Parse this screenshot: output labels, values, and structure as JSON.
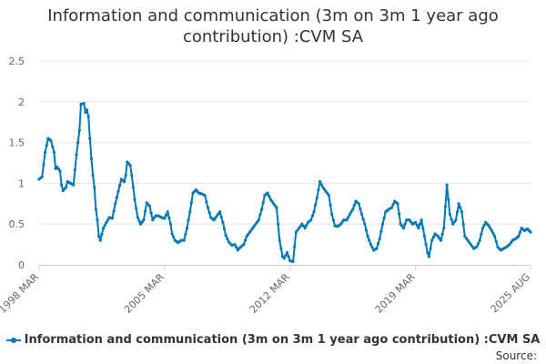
{
  "chart_data": {
    "type": "line",
    "title": "Information and communication (3m on 3m 1 year ago contribution) :CVM SA",
    "xlabel": "",
    "ylabel": "",
    "ylim": [
      0,
      2.5
    ],
    "y_ticks": [
      "0",
      "0.5",
      "1",
      "1.5",
      "2",
      "2.5"
    ],
    "x_ticks": [
      {
        "label": "1998 MAR",
        "index": 0
      },
      {
        "label": "2005 MAR",
        "index": 84
      },
      {
        "label": "2012 MAR",
        "index": 168
      },
      {
        "label": "2019 MAR",
        "index": 252
      },
      {
        "label": "2025 AUG",
        "index": 329
      }
    ],
    "grid": true,
    "legend": "bottom-center",
    "color": "#0077b6",
    "series": [
      {
        "name": "Information and communication (3m on 3m 1 year ago contribution) :CVM SA",
        "start": "1998 MAR",
        "end": "2025 AUG",
        "frequency": "monthly",
        "anchors": [
          [
            0,
            1.05
          ],
          [
            2,
            1.08
          ],
          [
            4,
            1.38
          ],
          [
            6,
            1.55
          ],
          [
            8,
            1.52
          ],
          [
            10,
            1.38
          ],
          [
            11,
            1.18
          ],
          [
            12,
            1.2
          ],
          [
            14,
            1.15
          ],
          [
            15,
            0.98
          ],
          [
            16,
            0.91
          ],
          [
            18,
            0.95
          ],
          [
            19,
            1.02
          ],
          [
            21,
            1.0
          ],
          [
            23,
            0.98
          ],
          [
            25,
            1.35
          ],
          [
            27,
            1.65
          ],
          [
            28,
            1.97
          ],
          [
            30,
            1.98
          ],
          [
            31,
            1.87
          ],
          [
            32,
            1.9
          ],
          [
            33,
            1.82
          ],
          [
            34,
            1.55
          ],
          [
            35,
            1.3
          ],
          [
            36,
            1.1
          ],
          [
            37,
            0.95
          ],
          [
            38,
            0.68
          ],
          [
            39,
            0.55
          ],
          [
            40,
            0.35
          ],
          [
            41,
            0.3
          ],
          [
            43,
            0.45
          ],
          [
            45,
            0.52
          ],
          [
            47,
            0.58
          ],
          [
            49,
            0.57
          ],
          [
            51,
            0.75
          ],
          [
            53,
            0.9
          ],
          [
            55,
            1.05
          ],
          [
            57,
            1.02
          ],
          [
            58,
            1.1
          ],
          [
            59,
            1.26
          ],
          [
            61,
            1.22
          ],
          [
            62,
            1.1
          ],
          [
            63,
            0.95
          ],
          [
            64,
            0.8
          ],
          [
            66,
            0.58
          ],
          [
            68,
            0.5
          ],
          [
            70,
            0.55
          ],
          [
            72,
            0.76
          ],
          [
            74,
            0.72
          ],
          [
            76,
            0.55
          ],
          [
            78,
            0.6
          ],
          [
            80,
            0.6
          ],
          [
            82,
            0.58
          ],
          [
            84,
            0.57
          ],
          [
            86,
            0.65
          ],
          [
            88,
            0.5
          ],
          [
            89,
            0.38
          ],
          [
            91,
            0.3
          ],
          [
            93,
            0.27
          ],
          [
            95,
            0.3
          ],
          [
            97,
            0.3
          ],
          [
            99,
            0.45
          ],
          [
            101,
            0.65
          ],
          [
            103,
            0.88
          ],
          [
            105,
            0.92
          ],
          [
            107,
            0.88
          ],
          [
            109,
            0.87
          ],
          [
            111,
            0.85
          ],
          [
            113,
            0.7
          ],
          [
            115,
            0.58
          ],
          [
            117,
            0.55
          ],
          [
            119,
            0.6
          ],
          [
            121,
            0.65
          ],
          [
            123,
            0.52
          ],
          [
            125,
            0.36
          ],
          [
            127,
            0.28
          ],
          [
            129,
            0.24
          ],
          [
            131,
            0.25
          ],
          [
            133,
            0.18
          ],
          [
            135,
            0.22
          ],
          [
            137,
            0.25
          ],
          [
            139,
            0.35
          ],
          [
            141,
            0.4
          ],
          [
            143,
            0.45
          ],
          [
            145,
            0.5
          ],
          [
            147,
            0.55
          ],
          [
            149,
            0.68
          ],
          [
            151,
            0.85
          ],
          [
            153,
            0.88
          ],
          [
            155,
            0.8
          ],
          [
            157,
            0.75
          ],
          [
            159,
            0.7
          ],
          [
            161,
            0.3
          ],
          [
            163,
            0.1
          ],
          [
            164,
            0.08
          ],
          [
            166,
            0.15
          ],
          [
            168,
            0.05
          ],
          [
            170,
            0.04
          ],
          [
            172,
            0.4
          ],
          [
            174,
            0.45
          ],
          [
            176,
            0.5
          ],
          [
            178,
            0.45
          ],
          [
            180,
            0.52
          ],
          [
            182,
            0.55
          ],
          [
            184,
            0.65
          ],
          [
            186,
            0.82
          ],
          [
            188,
            1.02
          ],
          [
            190,
            0.95
          ],
          [
            192,
            0.9
          ],
          [
            194,
            0.85
          ],
          [
            196,
            0.62
          ],
          [
            198,
            0.48
          ],
          [
            200,
            0.47
          ],
          [
            202,
            0.5
          ],
          [
            204,
            0.55
          ],
          [
            206,
            0.55
          ],
          [
            208,
            0.62
          ],
          [
            210,
            0.68
          ],
          [
            212,
            0.78
          ],
          [
            214,
            0.75
          ],
          [
            216,
            0.62
          ],
          [
            218,
            0.5
          ],
          [
            220,
            0.35
          ],
          [
            222,
            0.25
          ],
          [
            224,
            0.18
          ],
          [
            226,
            0.2
          ],
          [
            228,
            0.32
          ],
          [
            230,
            0.5
          ],
          [
            232,
            0.65
          ],
          [
            234,
            0.68
          ],
          [
            236,
            0.7
          ],
          [
            238,
            0.78
          ],
          [
            240,
            0.75
          ],
          [
            242,
            0.5
          ],
          [
            244,
            0.45
          ],
          [
            246,
            0.55
          ],
          [
            248,
            0.55
          ],
          [
            250,
            0.5
          ],
          [
            252,
            0.52
          ],
          [
            254,
            0.45
          ],
          [
            256,
            0.55
          ],
          [
            258,
            0.35
          ],
          [
            260,
            0.15
          ],
          [
            261,
            0.1
          ],
          [
            263,
            0.3
          ],
          [
            265,
            0.38
          ],
          [
            267,
            0.35
          ],
          [
            269,
            0.3
          ],
          [
            271,
            0.45
          ],
          [
            273,
            0.98
          ],
          [
            275,
            0.62
          ],
          [
            277,
            0.5
          ],
          [
            279,
            0.55
          ],
          [
            281,
            0.75
          ],
          [
            283,
            0.65
          ],
          [
            285,
            0.35
          ],
          [
            287,
            0.3
          ],
          [
            289,
            0.25
          ],
          [
            291,
            0.2
          ],
          [
            293,
            0.22
          ],
          [
            295,
            0.3
          ],
          [
            297,
            0.45
          ],
          [
            299,
            0.52
          ],
          [
            301,
            0.48
          ],
          [
            303,
            0.42
          ],
          [
            305,
            0.35
          ],
          [
            307,
            0.22
          ],
          [
            309,
            0.18
          ],
          [
            311,
            0.2
          ],
          [
            313,
            0.22
          ],
          [
            315,
            0.25
          ],
          [
            317,
            0.3
          ],
          [
            319,
            0.32
          ],
          [
            321,
            0.35
          ],
          [
            323,
            0.45
          ],
          [
            325,
            0.42
          ],
          [
            327,
            0.44
          ],
          [
            329,
            0.4
          ]
        ]
      }
    ],
    "source_label": "Source:"
  }
}
